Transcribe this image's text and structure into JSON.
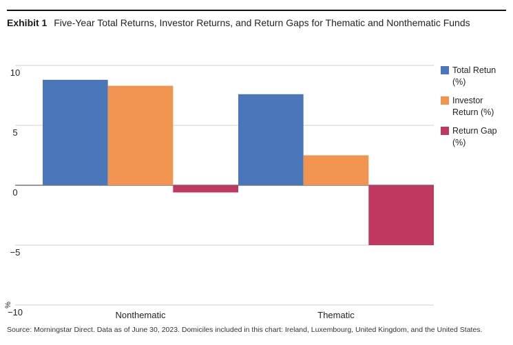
{
  "header": {
    "exhibit_label": "Exhibit 1",
    "title": "Five-Year Total Returns, Investor Returns, and Return Gaps for Thematic and Nonthematic Funds"
  },
  "chart_data": {
    "type": "bar",
    "categories": [
      "Nonthematic",
      "Thematic"
    ],
    "series": [
      {
        "name": "Total Retun (%)",
        "color": "#4a77ba",
        "values": [
          8.8,
          7.6
        ]
      },
      {
        "name": "Investor Return (%)",
        "color": "#f09450",
        "values": [
          8.3,
          2.5
        ]
      },
      {
        "name": "Return Gap (%)",
        "color": "#bf3860",
        "values": [
          -0.6,
          -5.0
        ]
      }
    ],
    "ylim": [
      -10,
      10
    ],
    "yticks": [
      10,
      5,
      0,
      -5,
      -10
    ],
    "ytick_labels": [
      "10",
      "5",
      "0",
      "−5",
      "−10"
    ],
    "ylabel": "%",
    "grid": true,
    "legend_position": "right",
    "legend_entries": [
      [
        "Total Retun",
        "(%)"
      ],
      [
        "Investor",
        "Return (%)"
      ],
      [
        "Return Gap",
        "(%)"
      ]
    ]
  },
  "footer": {
    "source": "Source: Morningstar Direct. Data as of June 30, 2023. Domiciles included in this chart: Ireland, Luxembourg, United Kingdom, and the United States."
  }
}
